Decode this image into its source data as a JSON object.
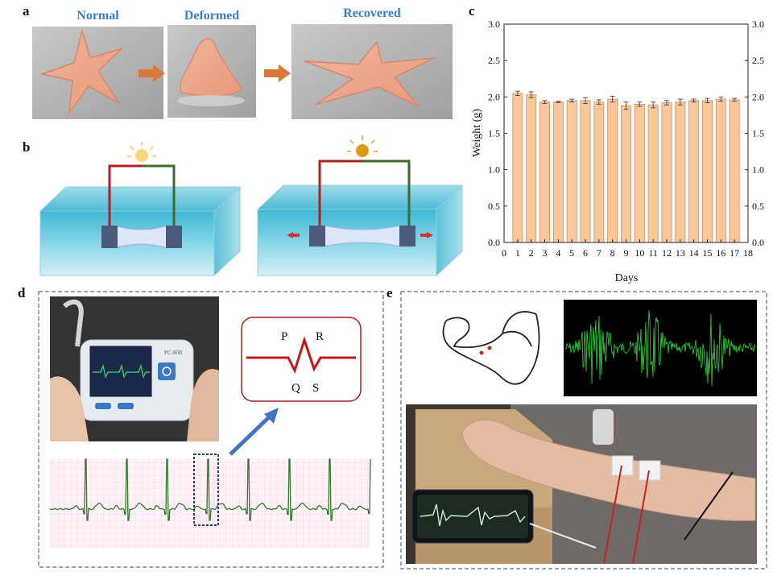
{
  "panels": {
    "a": {
      "label": "a",
      "titles": [
        "Normal",
        "Deformed",
        "Recovered"
      ]
    },
    "b": {
      "label": "b"
    },
    "c": {
      "label": "c"
    },
    "d": {
      "label": "d",
      "device_label": "PC-80B",
      "waves": [
        "P",
        "R",
        "Q",
        "S"
      ]
    },
    "e": {
      "label": "e"
    }
  },
  "chart_data": {
    "type": "bar",
    "title": "",
    "xlabel": "Days",
    "ylabel": "Weight (g)",
    "x": [
      1,
      2,
      3,
      4,
      5,
      6,
      7,
      8,
      9,
      10,
      11,
      12,
      13,
      14,
      15,
      16,
      17
    ],
    "values": [
      2.05,
      2.03,
      1.93,
      1.93,
      1.95,
      1.95,
      1.93,
      1.97,
      1.88,
      1.9,
      1.89,
      1.92,
      1.93,
      1.95,
      1.95,
      1.97,
      1.96
    ],
    "errors": [
      0.03,
      0.04,
      0.02,
      0.01,
      0.02,
      0.04,
      0.03,
      0.04,
      0.05,
      0.03,
      0.04,
      0.03,
      0.04,
      0.02,
      0.03,
      0.03,
      0.02
    ],
    "xlim": [
      0,
      18
    ],
    "ylim": [
      0,
      3.0
    ],
    "xticks": [
      "0",
      "1",
      "2",
      "3",
      "4",
      "5",
      "6",
      "7",
      "8",
      "9",
      "10",
      "11",
      "12",
      "13",
      "14",
      "15",
      "16",
      "17",
      "18"
    ],
    "yticks": [
      "0.0",
      "0.5",
      "1.0",
      "1.5",
      "2.0",
      "2.5",
      "3.0"
    ],
    "bar_color": "#f8c79a",
    "edge_color": "#d9895a",
    "grid": false,
    "right_axis": true
  }
}
